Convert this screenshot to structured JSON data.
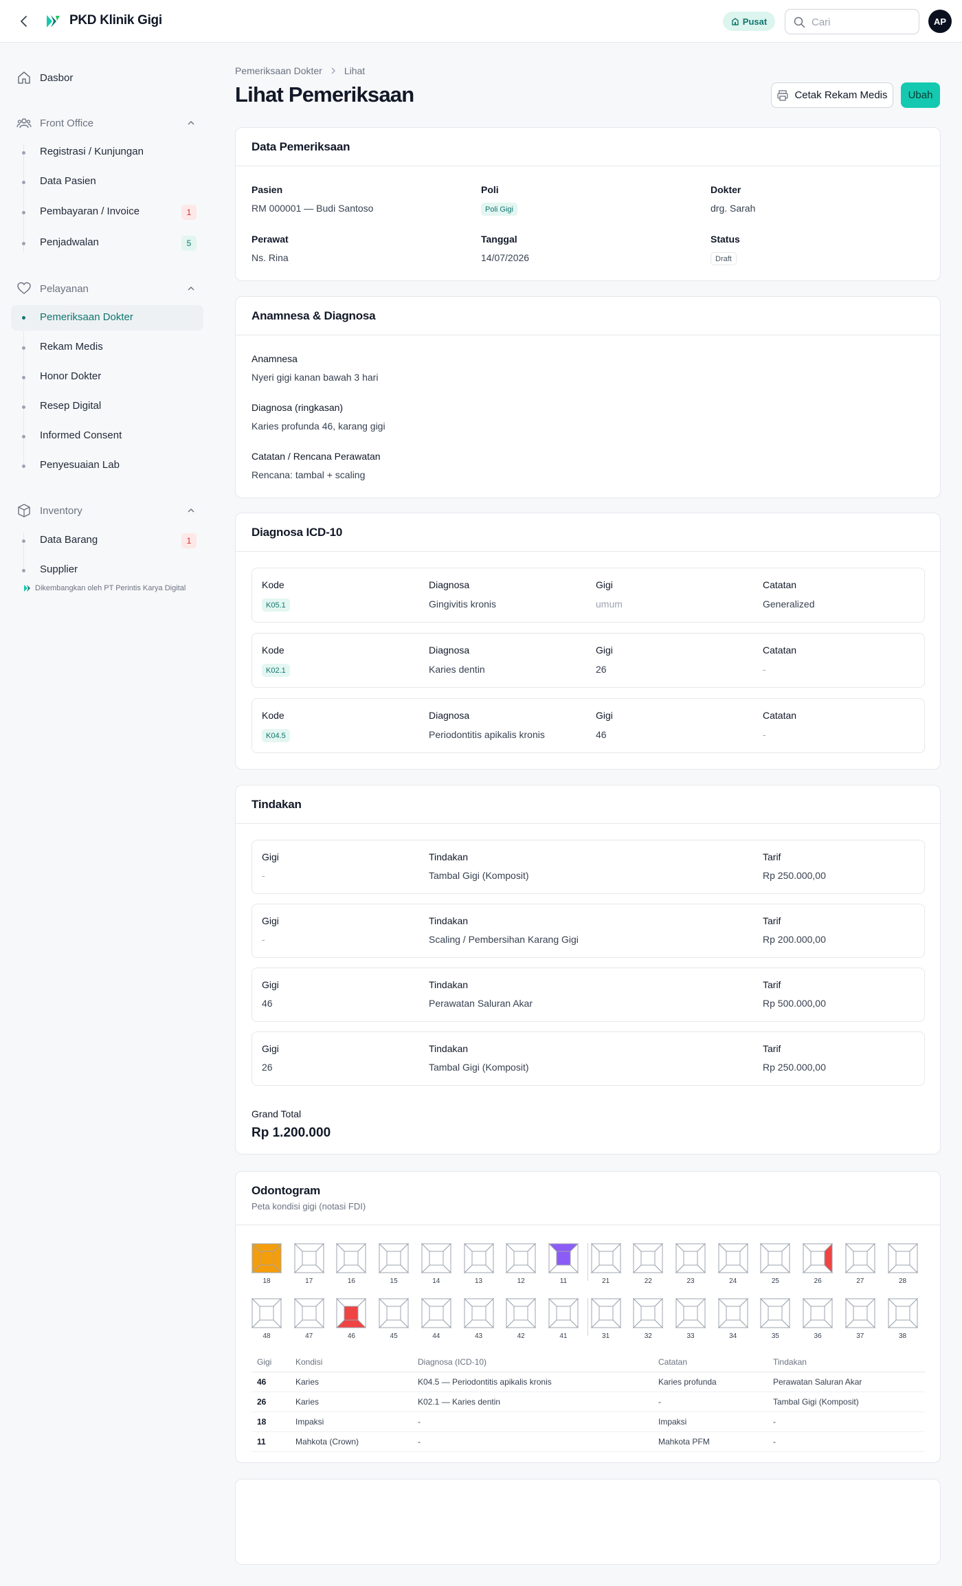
{
  "app": {
    "name": "PKD Klinik Gigi"
  },
  "header": {
    "branch": "Pusat",
    "search_placeholder": "Cari",
    "avatar": "AP"
  },
  "sidebar": {
    "dashboard": "Dasbor",
    "groups": [
      {
        "label": "Front Office",
        "icon": "users-icon",
        "items": [
          {
            "label": "Registrasi / Kunjungan"
          },
          {
            "label": "Data Pasien"
          },
          {
            "label": "Pembayaran / Invoice",
            "badge": "1"
          },
          {
            "label": "Penjadwalan",
            "badge": "5"
          }
        ]
      },
      {
        "label": "Pelayanan",
        "icon": "heart-icon",
        "items": [
          {
            "label": "Pemeriksaan Dokter",
            "active": true
          },
          {
            "label": "Rekam Medis"
          },
          {
            "label": "Honor Dokter"
          },
          {
            "label": "Resep Digital"
          },
          {
            "label": "Informed Consent"
          },
          {
            "label": "Penyesuaian Lab"
          }
        ]
      },
      {
        "label": "Inventory",
        "icon": "box-icon",
        "items": [
          {
            "label": "Data Barang",
            "badge": "1"
          },
          {
            "label": "Supplier"
          }
        ]
      }
    ],
    "credit": "Dikembangkan oleh PT Perintis Karya Digital"
  },
  "breadcrumb": [
    "Pemeriksaan Dokter",
    "Lihat"
  ],
  "page": {
    "title": "Lihat Pemeriksaan",
    "print_button": "Cetak Rekam Medis",
    "edit_button": "Ubah"
  },
  "exam": {
    "title": "Data Pemeriksaan",
    "fields": {
      "pasien_label": "Pasien",
      "pasien": "RM 000001 — Budi Santoso",
      "poli_label": "Poli",
      "poli": "Poli Gigi",
      "dokter_label": "Dokter",
      "dokter": "drg. Sarah",
      "perawat_label": "Perawat",
      "perawat": "Ns. Rina",
      "tanggal_label": "Tanggal",
      "tanggal": "14/07/2026",
      "status_label": "Status",
      "status": "Draft"
    }
  },
  "anamnesa": {
    "title": "Anamnesa & Diagnosa",
    "anamnesa_label": "Anamnesa",
    "anamnesa": "Nyeri gigi kanan bawah 3 hari",
    "diagnosa_label": "Diagnosa (ringkasan)",
    "diagnosa": "Karies profunda 46, karang gigi",
    "catatan_label": "Catatan / Rencana Perawatan",
    "catatan": "Rencana: tambal + scaling"
  },
  "icd": {
    "title": "Diagnosa ICD-10",
    "headers": {
      "kode": "Kode",
      "diagnosa": "Diagnosa",
      "gigi": "Gigi",
      "catatan": "Catatan"
    },
    "rows": [
      {
        "kode": "K05.1",
        "diagnosa": "Gingivitis kronis",
        "gigi": "umum",
        "catatan": "Generalized"
      },
      {
        "kode": "K02.1",
        "diagnosa": "Karies dentin",
        "gigi": "26",
        "catatan": "-"
      },
      {
        "kode": "K04.5",
        "diagnosa": "Periodontitis apikalis kronis",
        "gigi": "46",
        "catatan": "-"
      }
    ]
  },
  "tindakan": {
    "title": "Tindakan",
    "headers": {
      "gigi": "Gigi",
      "tindakan": "Tindakan",
      "tarif": "Tarif"
    },
    "rows": [
      {
        "gigi": "-",
        "tindakan": "Tambal Gigi (Komposit)",
        "tarif": "Rp 250.000,00"
      },
      {
        "gigi": "-",
        "tindakan": "Scaling / Pembersihan Karang Gigi",
        "tarif": "Rp 200.000,00"
      },
      {
        "gigi": "46",
        "tindakan": "Perawatan Saluran Akar",
        "tarif": "Rp 500.000,00"
      },
      {
        "gigi": "26",
        "tindakan": "Tambal Gigi (Komposit)",
        "tarif": "Rp 250.000,00"
      }
    ],
    "grand_total_label": "Grand Total",
    "grand_total": "Rp 1.200.000"
  },
  "odontogram": {
    "title": "Odontogram",
    "subtitle": "Peta kondisi gigi (notasi FDI)",
    "upper": [
      "18",
      "17",
      "16",
      "15",
      "14",
      "13",
      "12",
      "11",
      "21",
      "22",
      "23",
      "24",
      "25",
      "26",
      "27",
      "28"
    ],
    "lower": [
      "48",
      "47",
      "46",
      "45",
      "44",
      "43",
      "42",
      "41",
      "31",
      "32",
      "33",
      "34",
      "35",
      "36",
      "37",
      "38"
    ],
    "conditions": {
      "18": {
        "state": "impaksi",
        "color": "#f59e0b"
      },
      "11": {
        "state": "mahkota",
        "color": "#8b5cf6"
      },
      "26": {
        "state": "karies-distal",
        "color": "#ef4444"
      },
      "46": {
        "state": "karies",
        "color": "#ef4444"
      }
    },
    "table_headers": [
      "Gigi",
      "Kondisi",
      "Diagnosa (ICD-10)",
      "Catatan",
      "Tindakan"
    ],
    "table_rows": [
      [
        "46",
        "Karies",
        "K04.5 — Periodontitis apikalis kronis",
        "Karies profunda",
        "Perawatan Saluran Akar"
      ],
      [
        "26",
        "Karies",
        "K02.1 — Karies dentin",
        "-",
        "Tambal Gigi (Komposit)"
      ],
      [
        "18",
        "Impaksi",
        "-",
        "Impaksi",
        "-"
      ],
      [
        "11",
        "Mahkota (Crown)",
        "-",
        "Mahkota PFM",
        "-"
      ]
    ]
  },
  "colors": {
    "accent": "#0f766e",
    "button": "#14c9b0",
    "danger": "#ef4444",
    "warning": "#f59e0b",
    "crown": "#8b5cf6"
  }
}
